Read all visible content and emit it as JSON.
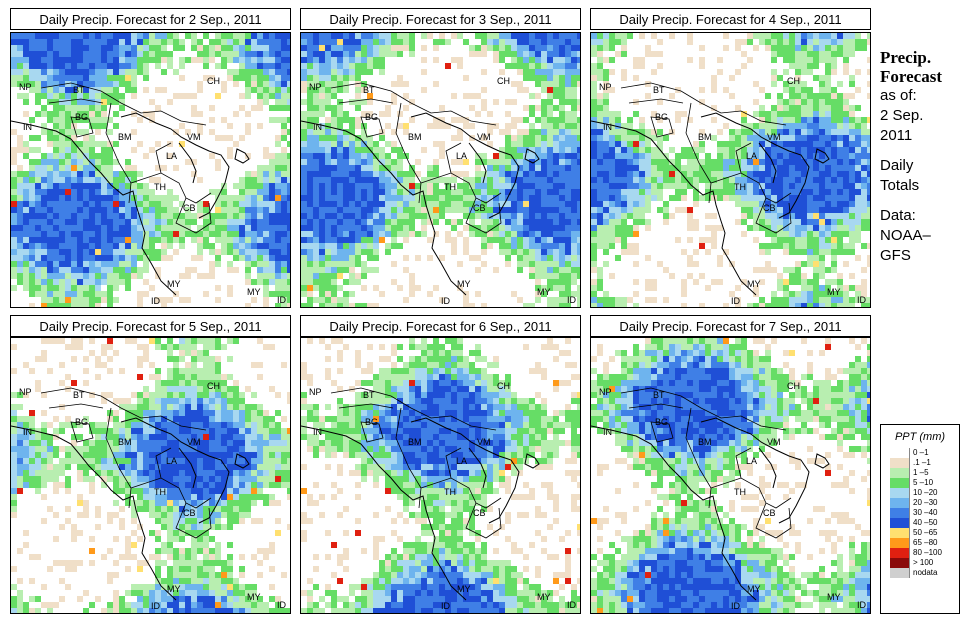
{
  "panels": [
    {
      "title": "Daily Precip. Forecast for  2 Sep., 2011"
    },
    {
      "title": "Daily Precip. Forecast for  3 Sep., 2011"
    },
    {
      "title": "Daily Precip. Forecast for  4 Sep., 2011"
    },
    {
      "title": "Daily Precip. Forecast for  5 Sep., 2011"
    },
    {
      "title": "Daily Precip. Forecast for  6 Sep., 2011"
    },
    {
      "title": "Daily Precip. Forecast for  7 Sep., 2011"
    }
  ],
  "map_labels": {
    "np": "NP",
    "bt": "BT",
    "in": "IN",
    "bg": "BG",
    "bm": "BM",
    "ch": "CH",
    "vm": "VM",
    "la": "LA",
    "th": "TH",
    "cb": "CB",
    "my": "MY",
    "id": "ID"
  },
  "sidebar": {
    "title_line1": "Precip.",
    "title_line2": "Forecast",
    "asof": "as of:",
    "date_line1": "2 Sep.",
    "date_line2": "2011",
    "totals_line1": "Daily",
    "totals_line2": "Totals",
    "data_line1": "Data:",
    "data_line2": "NOAA–",
    "data_line3": "GFS"
  },
  "legend": {
    "title": "PPT (mm)",
    "items": [
      {
        "label": "0 –1",
        "color": "#ffffff"
      },
      {
        "label": ".1 –1",
        "color": "#f0dfc8"
      },
      {
        "label": "1 –5",
        "color": "#b8eeb0"
      },
      {
        "label": "5 –10",
        "color": "#66dd66"
      },
      {
        "label": "10 –20",
        "color": "#a8d8f0"
      },
      {
        "label": "20 –30",
        "color": "#6eb4ee"
      },
      {
        "label": "30 –40",
        "color": "#3f7fe6"
      },
      {
        "label": "40 –50",
        "color": "#1f4fd6"
      },
      {
        "label": "50 –65",
        "color": "#ffe070"
      },
      {
        "label": "65 –80",
        "color": "#ff9a1a"
      },
      {
        "label": "80 –100",
        "color": "#e02010"
      },
      {
        "label": "> 100",
        "color": "#8a0a0a"
      },
      {
        "label": "nodata",
        "color": "#cfcfcf"
      }
    ]
  }
}
